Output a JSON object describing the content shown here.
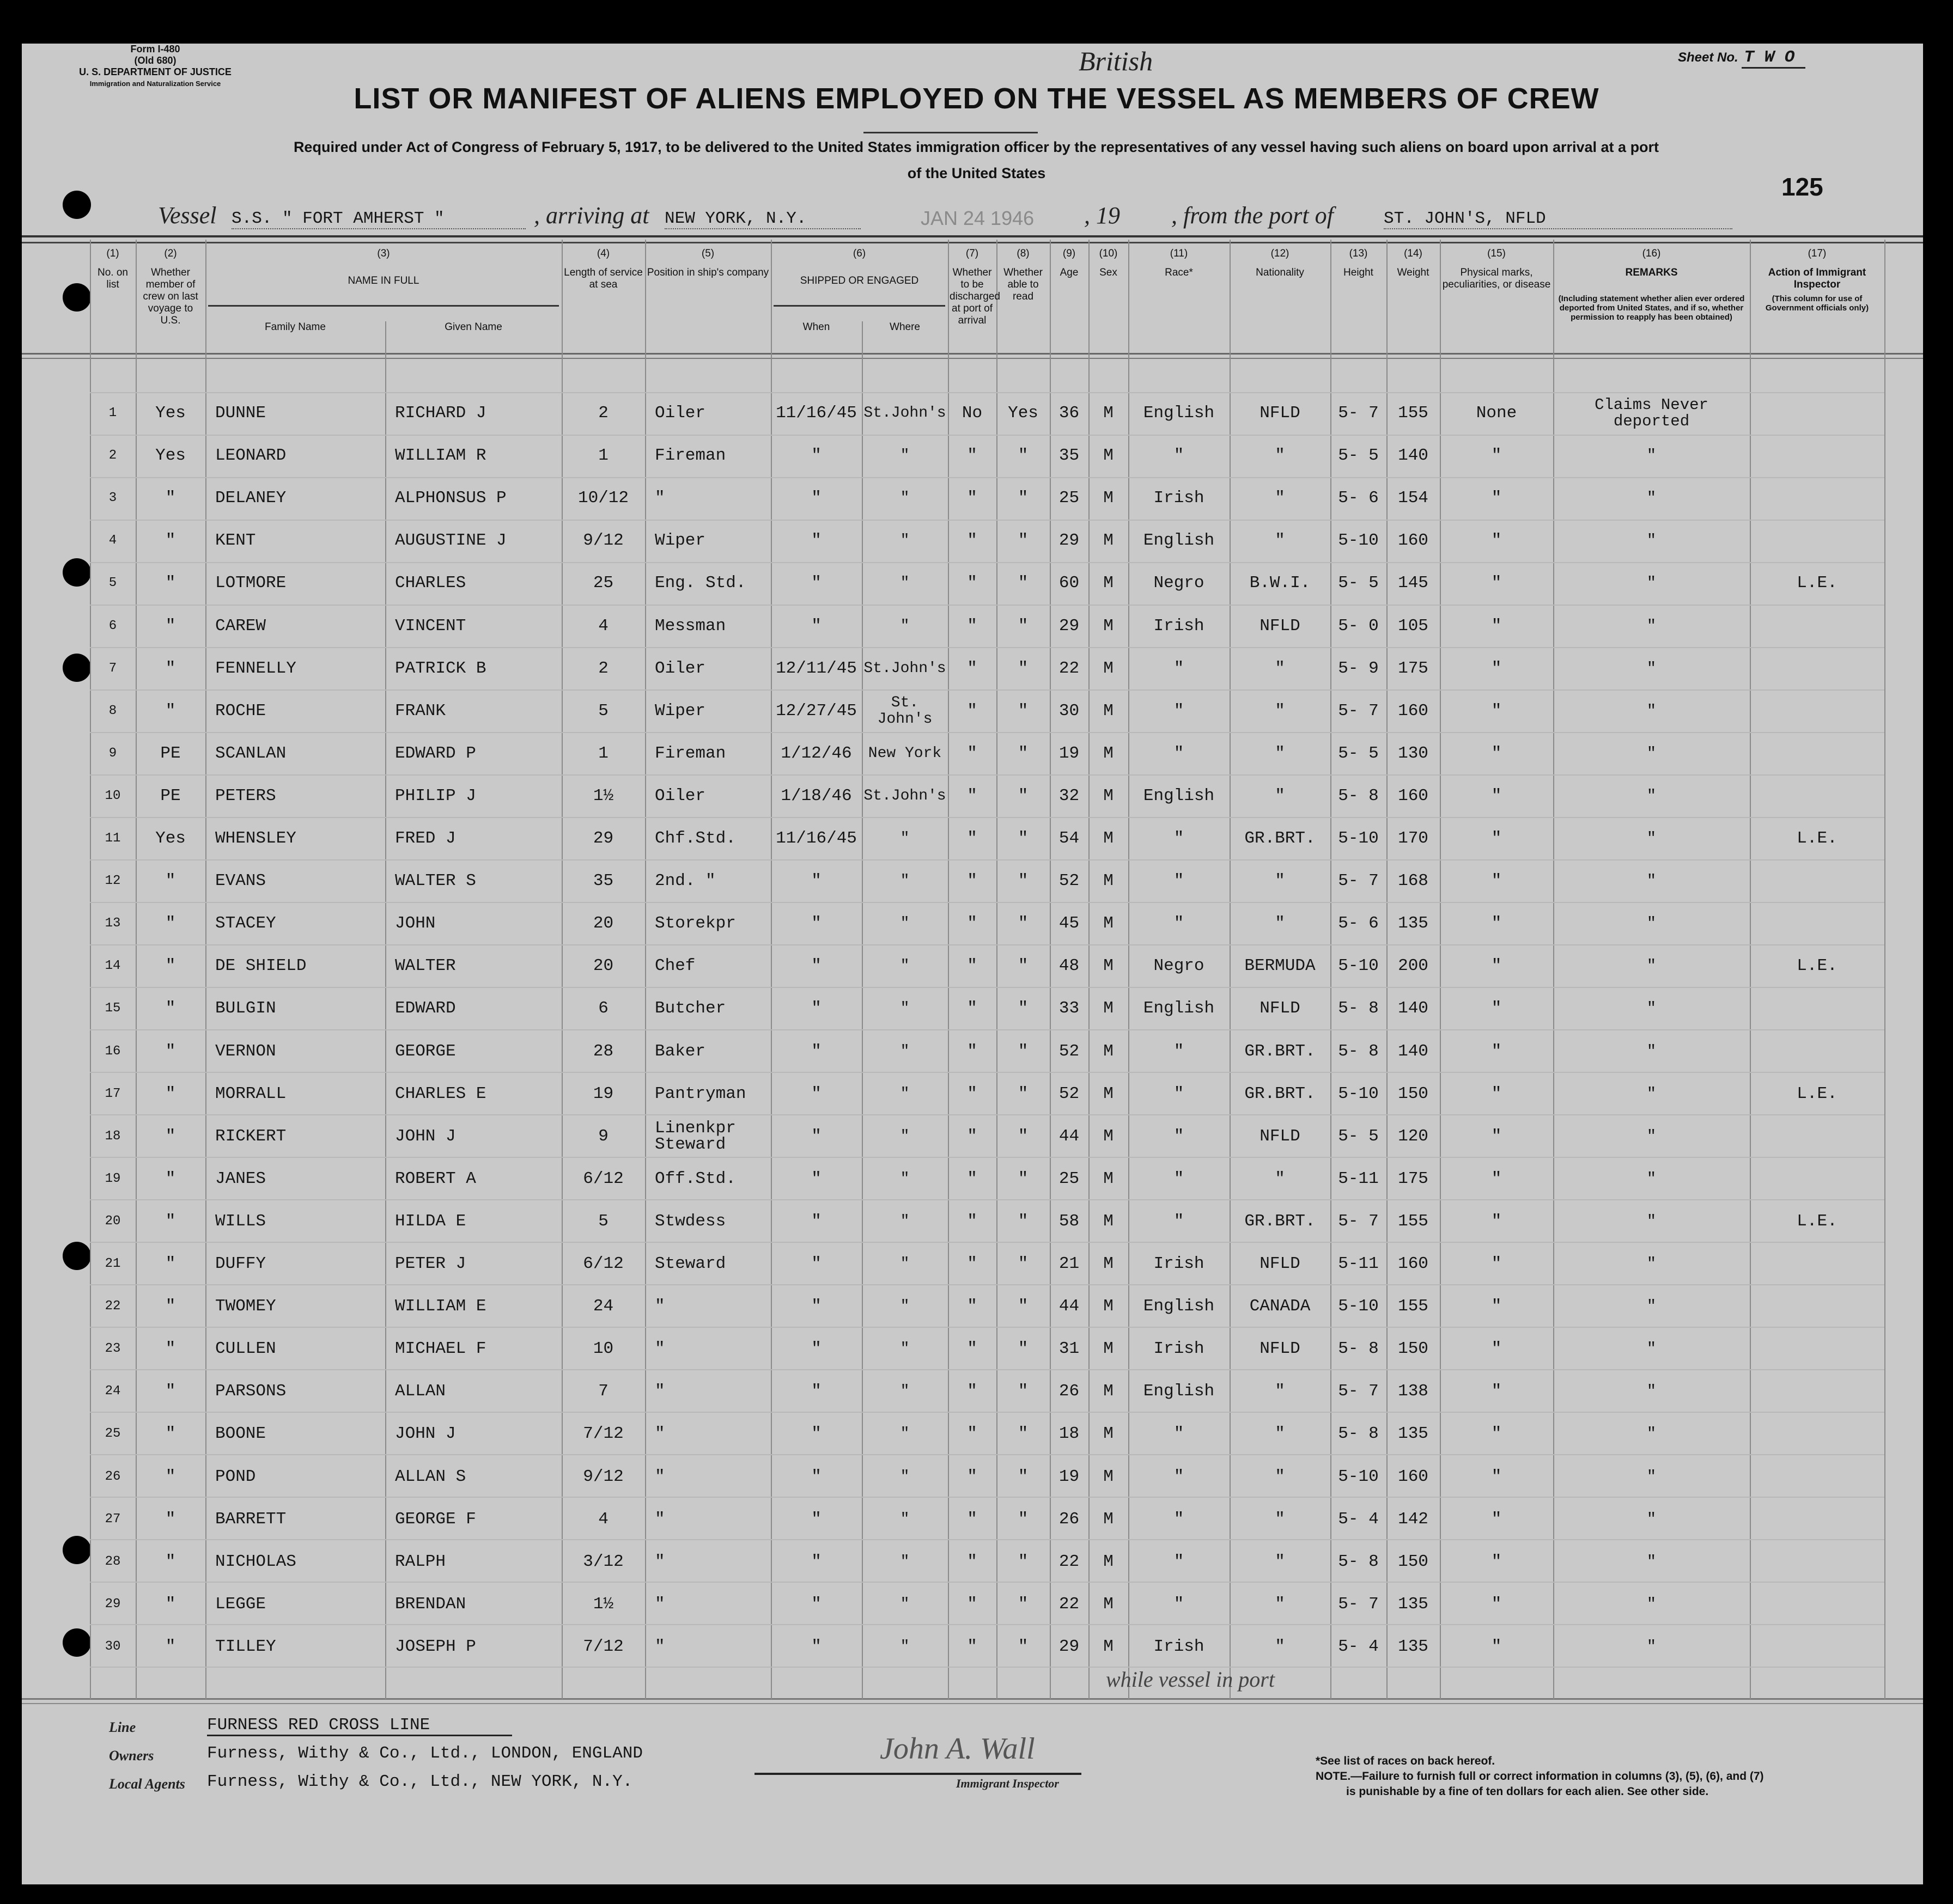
{
  "form": {
    "form_no": "Form I-480",
    "old": "(Old 680)",
    "dept": "U. S. DEPARTMENT OF JUSTICE",
    "service": "Immigration and Naturalization Service",
    "sheet_label": "Sheet No.",
    "sheet_value": "T W O",
    "annotation": "British",
    "title": "LIST OR MANIFEST OF ALIENS EMPLOYED ON THE VESSEL AS MEMBERS OF CREW",
    "subtitle_1": "Required under Act of Congress of February 5, 1917, to be delivered to the United States immigration officer by the representatives of any vessel having such aliens on board upon arrival at a port",
    "subtitle_2": "of the United States",
    "page_number": "125"
  },
  "vessel_line": {
    "vessel_label": "Vessel",
    "vessel": "S.S. \" FORT AMHERST \"",
    "arriving_label": ", arriving at",
    "arriving": "NEW YORK, N.Y.",
    "date_stamp": "JAN 24 1946",
    "year_label": ", 19",
    "from_label": ", from the port of",
    "from": "ST. JOHN'S, NFLD"
  },
  "columns": [
    {
      "num": "(1)",
      "label": "No. on list"
    },
    {
      "num": "(2)",
      "label": "Whether member of crew on last voyage to U.S."
    },
    {
      "num": "(3)",
      "label": "NAME IN FULL",
      "sub": [
        "Family Name",
        "Given Name"
      ]
    },
    {
      "num": "(4)",
      "label": "Length of service at sea"
    },
    {
      "num": "(5)",
      "label": "Position in ship's company"
    },
    {
      "num": "(6)",
      "label": "SHIPPED OR ENGAGED",
      "sub": [
        "When",
        "Where"
      ]
    },
    {
      "num": "(7)",
      "label": "Whether to be discharged at port of arrival"
    },
    {
      "num": "(8)",
      "label": "Whether able to read"
    },
    {
      "num": "(9)",
      "label": "Age"
    },
    {
      "num": "(10)",
      "label": "Sex"
    },
    {
      "num": "(11)",
      "label": "Race*"
    },
    {
      "num": "(12)",
      "label": "Nationality"
    },
    {
      "num": "(13)",
      "label": "Height"
    },
    {
      "num": "(14)",
      "label": "Weight"
    },
    {
      "num": "(15)",
      "label": "Physical marks, peculiarities, or disease"
    },
    {
      "num": "(16)",
      "label": "REMARKS",
      "note": "(Including statement whether alien ever ordered deported from United States, and if so, whether permission to reapply has been obtained)"
    },
    {
      "num": "(17)",
      "label": "Action of Immigrant Inspector",
      "note": "(This column for use of Government officials only)"
    }
  ],
  "rows": [
    [
      "1",
      "Yes",
      "DUNNE",
      "RICHARD J",
      "2",
      "Oiler",
      "11/16/45",
      "St.John's",
      "No",
      "Yes",
      "36",
      "M",
      "English",
      "NFLD",
      "5- 7",
      "155",
      "None",
      "Claims Never deported",
      ""
    ],
    [
      "2",
      "Yes",
      "LEONARD",
      "WILLIAM R",
      "1",
      "Fireman",
      "\"",
      "\"",
      "\"",
      "\"",
      "35",
      "M",
      "\"",
      "\"",
      "5- 5",
      "140",
      "\"",
      "\"",
      ""
    ],
    [
      "3",
      "\"",
      "DELANEY",
      "ALPHONSUS P",
      "10/12",
      "\"",
      "\"",
      "\"",
      "\"",
      "\"",
      "25",
      "M",
      "Irish",
      "\"",
      "5- 6",
      "154",
      "\"",
      "\"",
      ""
    ],
    [
      "4",
      "\"",
      "KENT",
      "AUGUSTINE J",
      "9/12",
      "Wiper",
      "\"",
      "\"",
      "\"",
      "\"",
      "29",
      "M",
      "English",
      "\"",
      "5-10",
      "160",
      "\"",
      "\"",
      ""
    ],
    [
      "5",
      "\"",
      "LOTMORE",
      "CHARLES",
      "25",
      "Eng. Std.",
      "\"",
      "\"",
      "\"",
      "\"",
      "60",
      "M",
      "Negro",
      "B.W.I.",
      "5- 5",
      "145",
      "\"",
      "\"",
      "L.E."
    ],
    [
      "6",
      "\"",
      "CAREW",
      "VINCENT",
      "4",
      "Messman",
      "\"",
      "\"",
      "\"",
      "\"",
      "29",
      "M",
      "Irish",
      "NFLD",
      "5- 0",
      "105",
      "\"",
      "\"",
      ""
    ],
    [
      "7",
      "\"",
      "FENNELLY",
      "PATRICK B",
      "2",
      "Oiler",
      "12/11/45",
      "St.John's",
      "\"",
      "\"",
      "22",
      "M",
      "\"",
      "\"",
      "5- 9",
      "175",
      "\"",
      "\"",
      ""
    ],
    [
      "8",
      "\"",
      "ROCHE",
      "FRANK",
      "5",
      "Wiper",
      "12/27/45",
      "St. John's",
      "\"",
      "\"",
      "30",
      "M",
      "\"",
      "\"",
      "5- 7",
      "160",
      "\"",
      "\"",
      ""
    ],
    [
      "9",
      "PE",
      "SCANLAN",
      "EDWARD P",
      "1",
      "Fireman",
      "1/12/46",
      "New York",
      "\"",
      "\"",
      "19",
      "M",
      "\"",
      "\"",
      "5- 5",
      "130",
      "\"",
      "\"",
      ""
    ],
    [
      "10",
      "PE",
      "PETERS",
      "PHILIP J",
      "1½",
      "Oiler",
      "1/18/46",
      "St.John's",
      "\"",
      "\"",
      "32",
      "M",
      "English",
      "\"",
      "5- 8",
      "160",
      "\"",
      "\"",
      ""
    ],
    [
      "11",
      "Yes",
      "WHENSLEY",
      "FRED J",
      "29",
      "Chf.Std.",
      "11/16/45",
      "\"",
      "\"",
      "\"",
      "54",
      "M",
      "\"",
      "GR.BRT.",
      "5-10",
      "170",
      "\"",
      "\"",
      "L.E."
    ],
    [
      "12",
      "\"",
      "EVANS",
      "WALTER S",
      "35",
      "2nd. \"",
      "\"",
      "\"",
      "\"",
      "\"",
      "52",
      "M",
      "\"",
      "\"",
      "5- 7",
      "168",
      "\"",
      "\"",
      ""
    ],
    [
      "13",
      "\"",
      "STACEY",
      "JOHN",
      "20",
      "Storekpr",
      "\"",
      "\"",
      "\"",
      "\"",
      "45",
      "M",
      "\"",
      "\"",
      "5- 6",
      "135",
      "\"",
      "\"",
      ""
    ],
    [
      "14",
      "\"",
      "DE SHIELD",
      "WALTER",
      "20",
      "Chef",
      "\"",
      "\"",
      "\"",
      "\"",
      "48",
      "M",
      "Negro",
      "BERMUDA",
      "5-10",
      "200",
      "\"",
      "\"",
      "L.E."
    ],
    [
      "15",
      "\"",
      "BULGIN",
      "EDWARD",
      "6",
      "Butcher",
      "\"",
      "\"",
      "\"",
      "\"",
      "33",
      "M",
      "English",
      "NFLD",
      "5- 8",
      "140",
      "\"",
      "\"",
      ""
    ],
    [
      "16",
      "\"",
      "VERNON",
      "GEORGE",
      "28",
      "Baker",
      "\"",
      "\"",
      "\"",
      "\"",
      "52",
      "M",
      "\"",
      "GR.BRT.",
      "5- 8",
      "140",
      "\"",
      "\"",
      ""
    ],
    [
      "17",
      "\"",
      "MORRALL",
      "CHARLES E",
      "19",
      "Pantryman",
      "\"",
      "\"",
      "\"",
      "\"",
      "52",
      "M",
      "\"",
      "GR.BRT.",
      "5-10",
      "150",
      "\"",
      "\"",
      "L.E."
    ],
    [
      "18",
      "\"",
      "RICKERT",
      "JOHN J",
      "9",
      "Linenkpr Steward",
      "\"",
      "\"",
      "\"",
      "\"",
      "44",
      "M",
      "\"",
      "NFLD",
      "5- 5",
      "120",
      "\"",
      "\"",
      ""
    ],
    [
      "19",
      "\"",
      "JANES",
      "ROBERT A",
      "6/12",
      "Off.Std.",
      "\"",
      "\"",
      "\"",
      "\"",
      "25",
      "M",
      "\"",
      "\"",
      "5-11",
      "175",
      "\"",
      "\"",
      ""
    ],
    [
      "20",
      "\"",
      "WILLS",
      "HILDA E",
      "5",
      "Stwdess",
      "\"",
      "\"",
      "\"",
      "\"",
      "58",
      "M",
      "\"",
      "GR.BRT.",
      "5- 7",
      "155",
      "\"",
      "\"",
      "L.E."
    ],
    [
      "21",
      "\"",
      "DUFFY",
      "PETER J",
      "6/12",
      "Steward",
      "\"",
      "\"",
      "\"",
      "\"",
      "21",
      "M",
      "Irish",
      "NFLD",
      "5-11",
      "160",
      "\"",
      "\"",
      ""
    ],
    [
      "22",
      "\"",
      "TWOMEY",
      "WILLIAM E",
      "24",
      "\"",
      "\"",
      "\"",
      "\"",
      "\"",
      "44",
      "M",
      "English",
      "CANADA",
      "5-10",
      "155",
      "\"",
      "\"",
      ""
    ],
    [
      "23",
      "\"",
      "CULLEN",
      "MICHAEL F",
      "10",
      "\"",
      "\"",
      "\"",
      "\"",
      "\"",
      "31",
      "M",
      "Irish",
      "NFLD",
      "5- 8",
      "150",
      "\"",
      "\"",
      ""
    ],
    [
      "24",
      "\"",
      "PARSONS",
      "ALLAN",
      "7",
      "\"",
      "\"",
      "\"",
      "\"",
      "\"",
      "26",
      "M",
      "English",
      "\"",
      "5- 7",
      "138",
      "\"",
      "\"",
      ""
    ],
    [
      "25",
      "\"",
      "BOONE",
      "JOHN J",
      "7/12",
      "\"",
      "\"",
      "\"",
      "\"",
      "\"",
      "18",
      "M",
      "\"",
      "\"",
      "5- 8",
      "135",
      "\"",
      "\"",
      ""
    ],
    [
      "26",
      "\"",
      "POND",
      "ALLAN S",
      "9/12",
      "\"",
      "\"",
      "\"",
      "\"",
      "\"",
      "19",
      "M",
      "\"",
      "\"",
      "5-10",
      "160",
      "\"",
      "\"",
      ""
    ],
    [
      "27",
      "\"",
      "BARRETT",
      "GEORGE F",
      "4",
      "\"",
      "\"",
      "\"",
      "\"",
      "\"",
      "26",
      "M",
      "\"",
      "\"",
      "5- 4",
      "142",
      "\"",
      "\"",
      ""
    ],
    [
      "28",
      "\"",
      "NICHOLAS",
      "RALPH",
      "3/12",
      "\"",
      "\"",
      "\"",
      "\"",
      "\"",
      "22",
      "M",
      "\"",
      "\"",
      "5- 8",
      "150",
      "\"",
      "\"",
      ""
    ],
    [
      "29",
      "\"",
      "LEGGE",
      "BRENDAN",
      "1½",
      "\"",
      "\"",
      "\"",
      "\"",
      "\"",
      "22",
      "M",
      "\"",
      "\"",
      "5- 7",
      "135",
      "\"",
      "\"",
      ""
    ],
    [
      "30",
      "\"",
      "TILLEY",
      "JOSEPH P",
      "7/12",
      "\"",
      "\"",
      "\"",
      "\"",
      "\"",
      "29",
      "M",
      "Irish",
      "\"",
      "5- 4",
      "135",
      "\"",
      "\"",
      ""
    ]
  ],
  "handwritten_note": "while vessel in port",
  "footer": {
    "line_label": "Line",
    "line": "FURNESS RED CROSS LINE",
    "owners_label": "Owners",
    "owners": "Furness, Withy & Co., Ltd., LONDON, ENGLAND",
    "agents_label": "Local Agents",
    "agents": "Furness, Withy & Co., Ltd., NEW YORK, N.Y.",
    "signature": "John A. Wall",
    "inspector_label": "Immigrant Inspector",
    "races_note": "*See list of races on back hereof.",
    "note_1": "NOTE.—Failure to furnish full or correct information in columns (3), (5), (6), and (7)",
    "note_2": "is punishable by a fine of ten dollars for each alien. See other side."
  }
}
